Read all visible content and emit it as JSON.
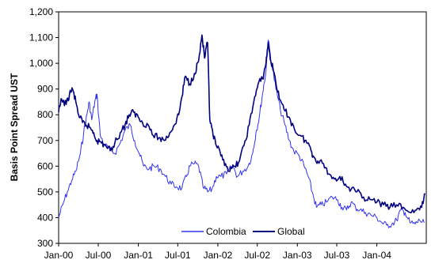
{
  "chart_data": {
    "type": "line",
    "title": "",
    "xlabel": "",
    "ylabel": "Basis Point Spread UST",
    "ylim": [
      300,
      1200
    ],
    "yticks": [
      300,
      400,
      500,
      600,
      700,
      800,
      900,
      1000,
      1100,
      1200
    ],
    "ytick_labels": [
      "300",
      "400",
      "500",
      "600",
      "700",
      "800",
      "900",
      "1,000",
      "1,100",
      "1,200"
    ],
    "xlim": [
      "2000-01-01",
      "2004-08-15"
    ],
    "xticks": [
      "2000-01-01",
      "2000-07-01",
      "2001-01-01",
      "2001-07-01",
      "2002-01-01",
      "2002-07-01",
      "2003-01-01",
      "2003-07-01",
      "2004-01-01"
    ],
    "xtick_labels": [
      "Jan-00",
      "Jul-00",
      "Jan-01",
      "Jul-01",
      "Jan-02",
      "Jul-02",
      "Jan-03",
      "Jul-03",
      "Jan-04"
    ],
    "grid": false,
    "legend_position": "bottom-center",
    "series": [
      {
        "name": "Colombia",
        "color": "#3333ee",
        "width": 1,
        "points": [
          [
            "2000-01-01",
            400
          ],
          [
            "2000-01-20",
            450
          ],
          [
            "2000-02-10",
            500
          ],
          [
            "2000-03-01",
            545
          ],
          [
            "2000-03-20",
            580
          ],
          [
            "2000-04-10",
            650
          ],
          [
            "2000-04-25",
            730
          ],
          [
            "2000-05-10",
            800
          ],
          [
            "2000-05-20",
            850
          ],
          [
            "2000-06-01",
            780
          ],
          [
            "2000-06-15",
            850
          ],
          [
            "2000-06-25",
            880
          ],
          [
            "2000-07-10",
            720
          ],
          [
            "2000-08-01",
            680
          ],
          [
            "2000-08-25",
            665
          ],
          [
            "2000-09-15",
            650
          ],
          [
            "2000-10-10",
            690
          ],
          [
            "2000-11-01",
            740
          ],
          [
            "2000-11-25",
            760
          ],
          [
            "2000-12-15",
            700
          ],
          [
            "2001-01-05",
            650
          ],
          [
            "2001-01-25",
            600
          ],
          [
            "2001-02-20",
            590
          ],
          [
            "2001-03-15",
            600
          ],
          [
            "2001-04-10",
            590
          ],
          [
            "2001-05-05",
            560
          ],
          [
            "2001-06-01",
            530
          ],
          [
            "2001-06-25",
            520
          ],
          [
            "2001-07-20",
            515
          ],
          [
            "2001-08-10",
            560
          ],
          [
            "2001-08-25",
            600
          ],
          [
            "2001-09-15",
            610
          ],
          [
            "2001-10-05",
            600
          ],
          [
            "2001-10-25",
            520
          ],
          [
            "2001-11-15",
            500
          ],
          [
            "2001-12-05",
            510
          ],
          [
            "2001-12-25",
            560
          ],
          [
            "2002-01-15",
            560
          ],
          [
            "2002-02-10",
            570
          ],
          [
            "2002-03-10",
            600
          ],
          [
            "2002-04-01",
            560
          ],
          [
            "2002-04-25",
            580
          ],
          [
            "2002-05-20",
            600
          ],
          [
            "2002-06-10",
            650
          ],
          [
            "2002-06-25",
            730
          ],
          [
            "2002-07-10",
            790
          ],
          [
            "2002-07-25",
            880
          ],
          [
            "2002-08-10",
            970
          ],
          [
            "2002-08-20",
            1090
          ],
          [
            "2002-09-05",
            1000
          ],
          [
            "2002-09-25",
            900
          ],
          [
            "2002-10-15",
            820
          ],
          [
            "2002-11-05",
            760
          ],
          [
            "2002-11-25",
            700
          ],
          [
            "2002-12-15",
            660
          ],
          [
            "2003-01-10",
            640
          ],
          [
            "2003-02-01",
            600
          ],
          [
            "2003-02-20",
            560
          ],
          [
            "2003-03-10",
            500
          ],
          [
            "2003-03-30",
            440
          ],
          [
            "2003-04-20",
            450
          ],
          [
            "2003-05-15",
            460
          ],
          [
            "2003-06-10",
            480
          ],
          [
            "2003-07-05",
            470
          ],
          [
            "2003-07-25",
            440
          ],
          [
            "2003-08-15",
            430
          ],
          [
            "2003-09-05",
            460
          ],
          [
            "2003-09-25",
            440
          ],
          [
            "2003-10-15",
            430
          ],
          [
            "2003-11-10",
            420
          ],
          [
            "2003-12-05",
            410
          ],
          [
            "2004-01-01",
            400
          ],
          [
            "2004-01-25",
            380
          ],
          [
            "2004-02-15",
            370
          ],
          [
            "2004-03-10",
            375
          ],
          [
            "2004-04-01",
            390
          ],
          [
            "2004-04-20",
            430
          ],
          [
            "2004-05-10",
            420
          ],
          [
            "2004-06-01",
            380
          ],
          [
            "2004-06-25",
            375
          ],
          [
            "2004-07-15",
            390
          ],
          [
            "2004-08-05",
            380
          ]
        ]
      },
      {
        "name": "Global",
        "color": "#000080",
        "width": 1.6,
        "points": [
          [
            "2000-01-01",
            810
          ],
          [
            "2000-01-15",
            860
          ],
          [
            "2000-02-05",
            840
          ],
          [
            "2000-02-20",
            880
          ],
          [
            "2000-03-05",
            900
          ],
          [
            "2000-03-20",
            850
          ],
          [
            "2000-04-05",
            790
          ],
          [
            "2000-04-20",
            770
          ],
          [
            "2000-05-05",
            760
          ],
          [
            "2000-05-25",
            750
          ],
          [
            "2000-06-10",
            730
          ],
          [
            "2000-06-25",
            700
          ],
          [
            "2000-07-15",
            690
          ],
          [
            "2000-08-05",
            680
          ],
          [
            "2000-08-25",
            660
          ],
          [
            "2000-09-15",
            690
          ],
          [
            "2000-10-10",
            730
          ],
          [
            "2000-11-01",
            760
          ],
          [
            "2000-11-20",
            800
          ],
          [
            "2000-12-10",
            810
          ],
          [
            "2001-01-01",
            790
          ],
          [
            "2001-01-20",
            770
          ],
          [
            "2001-02-15",
            760
          ],
          [
            "2001-03-10",
            720
          ],
          [
            "2001-04-05",
            710
          ],
          [
            "2001-05-01",
            700
          ],
          [
            "2001-05-25",
            730
          ],
          [
            "2001-06-15",
            760
          ],
          [
            "2001-07-05",
            800
          ],
          [
            "2001-07-20",
            870
          ],
          [
            "2001-08-05",
            950
          ],
          [
            "2001-08-25",
            920
          ],
          [
            "2001-09-15",
            960
          ],
          [
            "2001-10-05",
            1010
          ],
          [
            "2001-10-20",
            1110
          ],
          [
            "2001-11-01",
            1020
          ],
          [
            "2001-11-15",
            1080
          ],
          [
            "2001-11-25",
            780
          ],
          [
            "2001-12-10",
            720
          ],
          [
            "2001-12-25",
            680
          ],
          [
            "2002-01-15",
            640
          ],
          [
            "2002-02-05",
            610
          ],
          [
            "2002-02-25",
            580
          ],
          [
            "2002-03-20",
            600
          ],
          [
            "2002-04-10",
            620
          ],
          [
            "2002-05-01",
            680
          ],
          [
            "2002-05-25",
            760
          ],
          [
            "2002-06-15",
            850
          ],
          [
            "2002-07-05",
            920
          ],
          [
            "2002-07-25",
            940
          ],
          [
            "2002-08-10",
            1000
          ],
          [
            "2002-08-20",
            1080
          ],
          [
            "2002-09-01",
            1010
          ],
          [
            "2002-09-20",
            950
          ],
          [
            "2002-10-10",
            860
          ],
          [
            "2002-11-01",
            820
          ],
          [
            "2002-11-25",
            790
          ],
          [
            "2002-12-20",
            740
          ],
          [
            "2003-01-15",
            720
          ],
          [
            "2003-02-05",
            700
          ],
          [
            "2003-02-25",
            680
          ],
          [
            "2003-03-15",
            640
          ],
          [
            "2003-04-05",
            620
          ],
          [
            "2003-05-01",
            610
          ],
          [
            "2003-05-25",
            570
          ],
          [
            "2003-06-20",
            550
          ],
          [
            "2003-07-15",
            560
          ],
          [
            "2003-08-10",
            530
          ],
          [
            "2003-09-05",
            510
          ],
          [
            "2003-10-01",
            500
          ],
          [
            "2003-11-01",
            480
          ],
          [
            "2003-12-01",
            470
          ],
          [
            "2004-01-01",
            460
          ],
          [
            "2004-02-01",
            450
          ],
          [
            "2004-03-01",
            440
          ],
          [
            "2004-04-01",
            450
          ],
          [
            "2004-05-01",
            440
          ],
          [
            "2004-06-01",
            420
          ],
          [
            "2004-07-01",
            430
          ],
          [
            "2004-07-25",
            440
          ],
          [
            "2004-08-10",
            490
          ]
        ]
      }
    ]
  }
}
